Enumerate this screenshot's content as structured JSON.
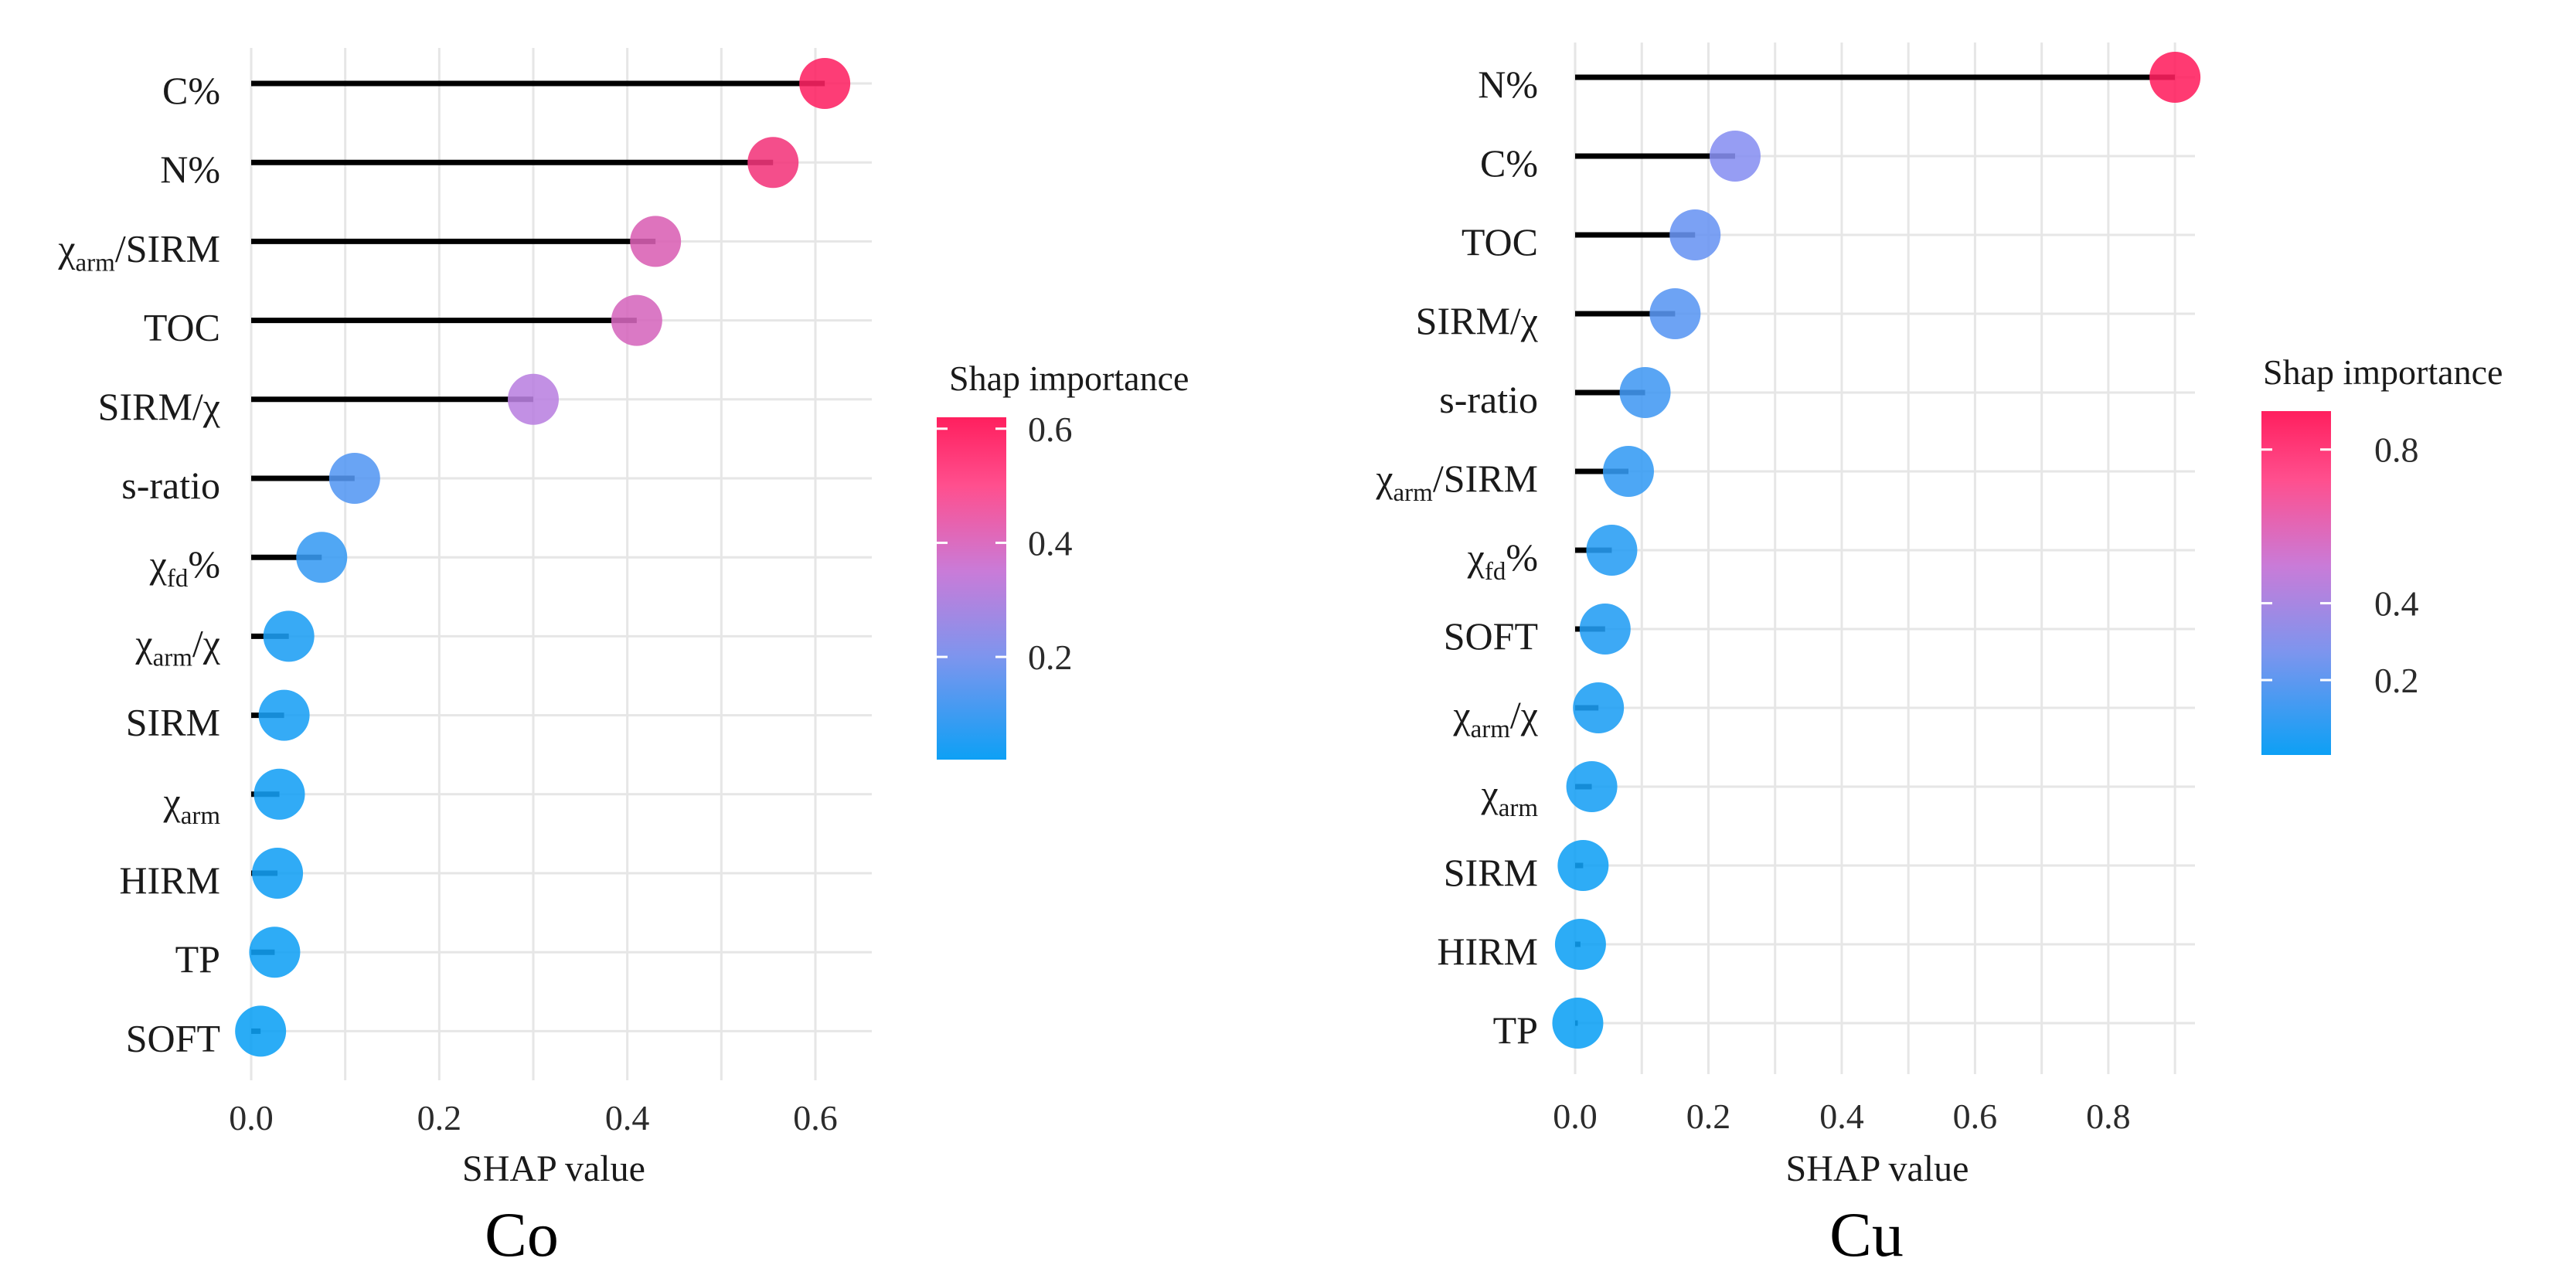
{
  "colors": {
    "low": "#0da0f5",
    "mid": "#9a8ef0",
    "mid2": "#c97bd8",
    "high": "#ff1f5e",
    "grid": "#e6e6e6",
    "stem": "#000000"
  },
  "chart_data": [
    {
      "type": "lollipop",
      "title": "Co",
      "xlabel": "SHAP value",
      "xlim": [
        0,
        0.66
      ],
      "xticks": [
        0.0,
        0.2,
        0.4,
        0.6
      ],
      "xtick_labels": [
        "0.0",
        "0.2",
        "0.4",
        "0.6"
      ],
      "legend": {
        "title": "Shap importance",
        "range": [
          0.02,
          0.62
        ],
        "ticks": [
          0.2,
          0.4,
          0.6
        ],
        "tick_labels": [
          "0.2",
          "0.4",
          "0.6"
        ]
      },
      "features": [
        {
          "name": "C%",
          "sub": "",
          "suffix": "",
          "value": 0.61
        },
        {
          "name": "N%",
          "sub": "",
          "suffix": "",
          "value": 0.555
        },
        {
          "name": "χ",
          "sub": "arm",
          "suffix": "/SIRM",
          "value": 0.43
        },
        {
          "name": "TOC",
          "sub": "",
          "suffix": "",
          "value": 0.41
        },
        {
          "name": "SIRM/χ",
          "sub": "",
          "suffix": "",
          "value": 0.3
        },
        {
          "name": "s-ratio",
          "sub": "",
          "suffix": "",
          "value": 0.11
        },
        {
          "name": "χ",
          "sub": "fd",
          "suffix": "%",
          "value": 0.075
        },
        {
          "name": "χ",
          "sub": "arm",
          "suffix": "/χ",
          "value": 0.04
        },
        {
          "name": "SIRM",
          "sub": "",
          "suffix": "",
          "value": 0.035
        },
        {
          "name": "χ",
          "sub": "arm",
          "suffix": "",
          "value": 0.03
        },
        {
          "name": "HIRM",
          "sub": "",
          "suffix": "",
          "value": 0.028
        },
        {
          "name": "TP",
          "sub": "",
          "suffix": "",
          "value": 0.025
        },
        {
          "name": "SOFT",
          "sub": "",
          "suffix": "",
          "value": 0.01
        }
      ]
    },
    {
      "type": "lollipop",
      "title": "Cu",
      "xlabel": "SHAP value",
      "xlim": [
        0,
        0.93
      ],
      "xticks": [
        0.0,
        0.2,
        0.4,
        0.6,
        0.8
      ],
      "xtick_labels": [
        "0.0",
        "0.2",
        "0.4",
        "0.6",
        "0.8"
      ],
      "legend": {
        "title": "Shap importance",
        "range": [
          0.005,
          0.9
        ],
        "ticks": [
          0.2,
          0.4,
          0.8
        ],
        "tick_labels": [
          "0.2",
          "0.4",
          "0.8"
        ]
      },
      "features": [
        {
          "name": "N%",
          "sub": "",
          "suffix": "",
          "value": 0.9
        },
        {
          "name": "C%",
          "sub": "",
          "suffix": "",
          "value": 0.24
        },
        {
          "name": "TOC",
          "sub": "",
          "suffix": "",
          "value": 0.18
        },
        {
          "name": "SIRM/χ",
          "sub": "",
          "suffix": "",
          "value": 0.15
        },
        {
          "name": "s-ratio",
          "sub": "",
          "suffix": "",
          "value": 0.105
        },
        {
          "name": "χ",
          "sub": "arm",
          "suffix": "/SIRM",
          "value": 0.08
        },
        {
          "name": "χ",
          "sub": "fd",
          "suffix": "%",
          "value": 0.055
        },
        {
          "name": "SOFT",
          "sub": "",
          "suffix": "",
          "value": 0.045
        },
        {
          "name": "χ",
          "sub": "arm",
          "suffix": "/χ",
          "value": 0.035
        },
        {
          "name": "χ",
          "sub": "arm",
          "suffix": "",
          "value": 0.025
        },
        {
          "name": "SIRM",
          "sub": "",
          "suffix": "",
          "value": 0.012
        },
        {
          "name": "HIRM",
          "sub": "",
          "suffix": "",
          "value": 0.008
        },
        {
          "name": "TP",
          "sub": "",
          "suffix": "",
          "value": 0.004
        }
      ]
    }
  ]
}
